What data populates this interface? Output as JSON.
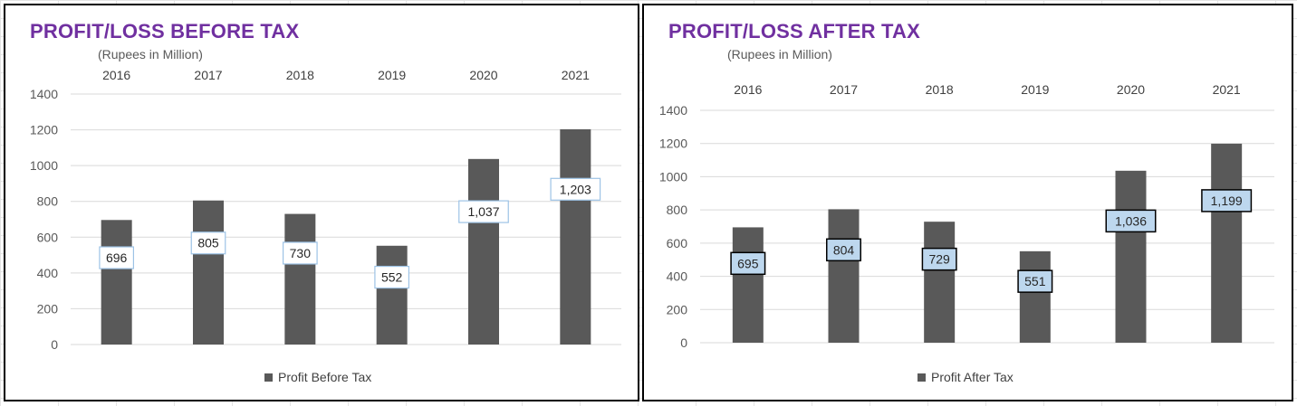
{
  "chart_data": [
    {
      "type": "bar",
      "title": "PROFIT/LOSS BEFORE TAX",
      "subtitle": "(Rupees in Million)",
      "categories": [
        "2016",
        "2017",
        "2018",
        "2019",
        "2020",
        "2021"
      ],
      "series": [
        {
          "name": "Profit Before Tax",
          "values": [
            696,
            805,
            730,
            552,
            1037,
            1203
          ]
        }
      ],
      "data_labels": [
        "696",
        "805",
        "730",
        "552",
        "1,037",
        "1,203"
      ],
      "yticks": [
        "0",
        "200",
        "400",
        "600",
        "800",
        "1000",
        "1200",
        "1400"
      ],
      "ylim": [
        0,
        1400
      ],
      "grid": true,
      "legend": "bottom",
      "category_axis_position": "top",
      "bar_color": "#595959",
      "label_fill": "#ffffff",
      "label_border": "#9dc3e6"
    },
    {
      "type": "bar",
      "title": "PROFIT/LOSS AFTER TAX",
      "subtitle": "(Rupees in Million)",
      "categories": [
        "2016",
        "2017",
        "2018",
        "2019",
        "2020",
        "2021"
      ],
      "series": [
        {
          "name": "Profit After Tax",
          "values": [
            695,
            804,
            729,
            551,
            1036,
            1199
          ]
        }
      ],
      "data_labels": [
        "695",
        "804",
        "729",
        "551",
        "1,036",
        "1,199"
      ],
      "yticks": [
        "0",
        "200",
        "400",
        "600",
        "800",
        "1000",
        "1200",
        "1400"
      ],
      "ylim": [
        0,
        1400
      ],
      "grid": true,
      "legend": "bottom",
      "category_axis_position": "top",
      "bar_color": "#595959",
      "label_fill": "#bdd7ee",
      "label_border": "#000000"
    }
  ]
}
